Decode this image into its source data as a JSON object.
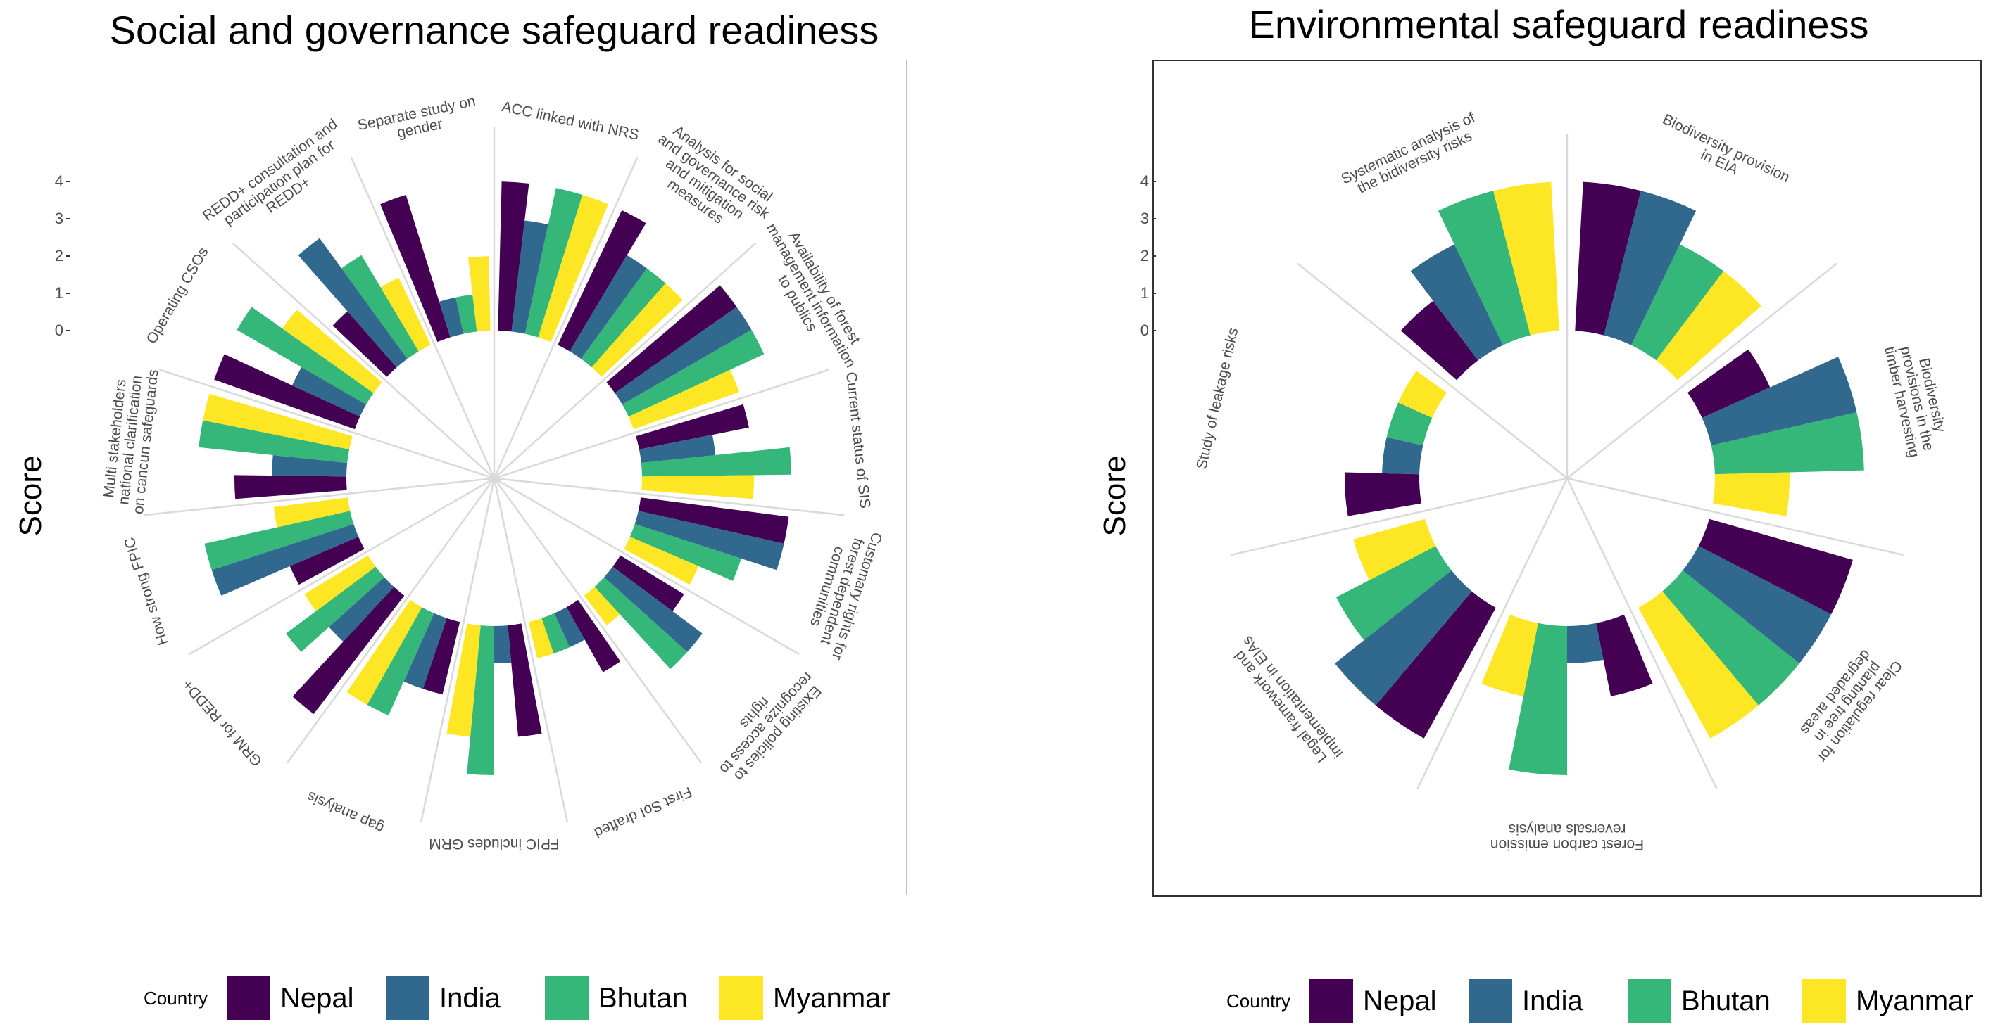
{
  "colors": {
    "Nepal": "#440154",
    "India": "#31688e",
    "Bhutan": "#35b779",
    "Myanmar": "#fde725"
  },
  "legend": {
    "title": "Country",
    "items": [
      "Nepal",
      "India",
      "Bhutan",
      "Myanmar"
    ]
  },
  "chart_data": [
    {
      "type": "bar",
      "polar": true,
      "title": "Social and governance safeguard readiness",
      "ylabel": "Score",
      "ylim": [
        -4,
        4
      ],
      "yticks": [
        "0",
        "1",
        "2",
        "3",
        "4"
      ],
      "series_order": [
        "Nepal",
        "India",
        "Bhutan",
        "Myanmar"
      ],
      "categories": [
        {
          "label": "ACC linked with NRS",
          "values": {
            "Nepal": 4,
            "India": 3,
            "Bhutan": 4,
            "Myanmar": 4
          }
        },
        {
          "label": "Analysis for social and governance risk and mitigation measures",
          "values": {
            "Nepal": 4,
            "India": 3,
            "Bhutan": 3,
            "Myanmar": 3
          }
        },
        {
          "label": "Availability of forest management information to publics",
          "values": {
            "Nepal": 4,
            "India": 4,
            "Bhutan": 4,
            "Myanmar": 3
          }
        },
        {
          "label": "Current status of SIS",
          "values": {
            "Nepal": 3,
            "India": 2,
            "Bhutan": 4,
            "Myanmar": 3
          }
        },
        {
          "label": "Customary rights for forest dependent communities",
          "values": {
            "Nepal": 4,
            "India": 4,
            "Bhutan": 3,
            "Myanmar": 2
          }
        },
        {
          "label": "Existing policies to recognize access to rights",
          "values": {
            "Nepal": 2,
            "India": 3,
            "Bhutan": 3,
            "Myanmar": 1
          }
        },
        {
          "label": "First SoI drafted",
          "values": {
            "Nepal": 2,
            "India": 1,
            "Bhutan": 1,
            "Myanmar": 1
          }
        },
        {
          "label": "FPIC includes GRM",
          "values": {
            "Nepal": 3,
            "India": 1,
            "Bhutan": 4,
            "Myanmar": 3
          }
        },
        {
          "label": "gap analysis",
          "values": {
            "Nepal": 2,
            "India": 2,
            "Bhutan": 3,
            "Myanmar": 3
          }
        },
        {
          "label": "GRM for REDD+",
          "values": {
            "Nepal": 4,
            "India": 2,
            "Bhutan": 3,
            "Myanmar": 2
          }
        },
        {
          "label": "How strong FPIC",
          "values": {
            "Nepal": 2,
            "India": 4,
            "Bhutan": 4,
            "Myanmar": 2
          }
        },
        {
          "label": "Multi stakeholders national clarification on cancun safeguards",
          "values": {
            "Nepal": 3,
            "India": 2,
            "Bhutan": 4,
            "Myanmar": 4
          }
        },
        {
          "label": "Operating CSOs",
          "values": {
            "Nepal": 4,
            "India": 2,
            "Bhutan": 4,
            "Myanmar": 3
          }
        },
        {
          "label": "REDD+ consultation and participation plan for REDD+",
          "values": {
            "Nepal": 2,
            "India": 4,
            "Bhutan": 3,
            "Myanmar": 2
          }
        },
        {
          "label": "Separate study on gender",
          "values": {
            "Nepal": 4,
            "India": 1,
            "Bhutan": 1,
            "Myanmar": 2
          }
        }
      ]
    },
    {
      "type": "bar",
      "polar": true,
      "title": "Environmental safeguard readiness",
      "ylabel": "Score",
      "ylim": [
        -4,
        4
      ],
      "yticks": [
        "0",
        "1",
        "2",
        "3",
        "4"
      ],
      "series_order": [
        "Nepal",
        "India",
        "Bhutan",
        "Myanmar"
      ],
      "categories": [
        {
          "label": "Biodiversity provision in EIA",
          "values": {
            "Nepal": 4,
            "India": 4,
            "Bhutan": 3,
            "Myanmar": 3
          }
        },
        {
          "label": "Biodiversity provisions in the timber harvesting",
          "values": {
            "Nepal": 2,
            "India": 4,
            "Bhutan": 4,
            "Myanmar": 2
          }
        },
        {
          "label": "Clear regulation for planting tree in degraded areas",
          "values": {
            "Nepal": 4,
            "India": 4,
            "Bhutan": 4,
            "Myanmar": 4
          }
        },
        {
          "label": "Forest carbon emission reversals analysis",
          "values": {
            "Nepal": 2,
            "India": 1,
            "Bhutan": 4,
            "Myanmar": 2
          }
        },
        {
          "label": "Legal framework and implementation in EIAs",
          "values": {
            "Nepal": 4,
            "India": 4,
            "Bhutan": 3,
            "Myanmar": 2
          }
        },
        {
          "label": "Study of leakage risks",
          "values": {
            "Nepal": 2,
            "India": 1,
            "Bhutan": 1,
            "Myanmar": 1
          }
        },
        {
          "label": "Systematic analysis of the bidiversity risks",
          "values": {
            "Nepal": 2,
            "India": 3,
            "Bhutan": 4,
            "Myanmar": 4
          }
        }
      ]
    }
  ]
}
